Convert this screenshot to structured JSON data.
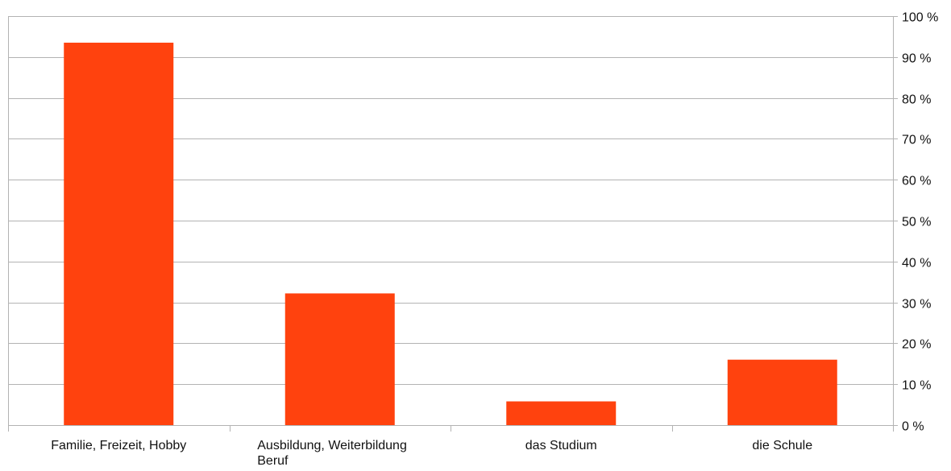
{
  "chart_data": {
    "type": "bar",
    "categories": [
      [
        "Familie, Freizeit, Hobby"
      ],
      [
        "Ausbildung, Weiterbildung",
        "Beruf"
      ],
      [
        "das Studium"
      ],
      [
        "die Schule"
      ]
    ],
    "values": [
      93.5,
      32.2,
      5.8,
      16.0
    ],
    "unit": "%",
    "ylim": [
      0,
      100
    ],
    "y_ticks": [
      0,
      10,
      20,
      30,
      40,
      50,
      60,
      70,
      80,
      90,
      100
    ],
    "y_tick_labels": [
      "0 %",
      "10 %",
      "20 %",
      "30 %",
      "40 %",
      "50 %",
      "60 %",
      "70 %",
      "80 %",
      "90 %",
      "100 %"
    ],
    "y_axis_side": "right",
    "grid": true,
    "legend": "none",
    "colors": {
      "bar": "#ff420e",
      "grid": "#b3b3b3",
      "axis": "#b3b3b3"
    }
  }
}
